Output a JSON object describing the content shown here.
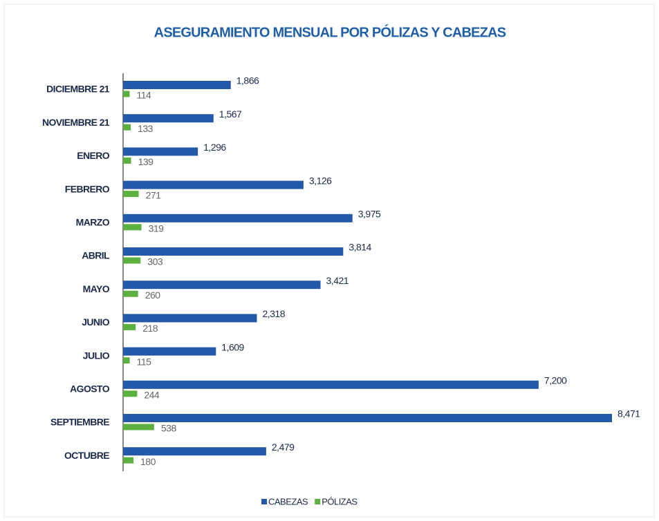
{
  "chart_data": {
    "type": "hbar",
    "title": "ASEGURAMIENTO MENSUAL POR PÓLIZAS Y CABEZAS",
    "categories": [
      "DICIEMBRE 21",
      "NOVIEMBRE 21",
      "ENERO",
      "FEBRERO",
      "MARZO",
      "ABRIL",
      "MAYO",
      "JUNIO",
      "JULIO",
      "AGOSTO",
      "SEPTIEMBRE",
      "OCTUBRE"
    ],
    "series": [
      {
        "name": "CABEZAS",
        "color": "#2458a8",
        "values": [
          1866,
          1567,
          1296,
          3126,
          3975,
          3814,
          3421,
          2318,
          1609,
          7200,
          8471,
          2479
        ],
        "value_labels": [
          "1,866",
          "1,567",
          "1,296",
          "3,126",
          "3,975",
          "3,814",
          "3,421",
          "2,318",
          "1,609",
          "7,200",
          "8,471",
          "2,479"
        ]
      },
      {
        "name": "PÓLIZAS",
        "color": "#5cb040",
        "values": [
          114,
          133,
          139,
          271,
          319,
          303,
          260,
          218,
          115,
          244,
          538,
          180
        ],
        "value_labels": [
          "114",
          "133",
          "139",
          "271",
          "319",
          "303",
          "260",
          "218",
          "115",
          "244",
          "538",
          "180"
        ]
      }
    ],
    "legend": "bottom"
  }
}
